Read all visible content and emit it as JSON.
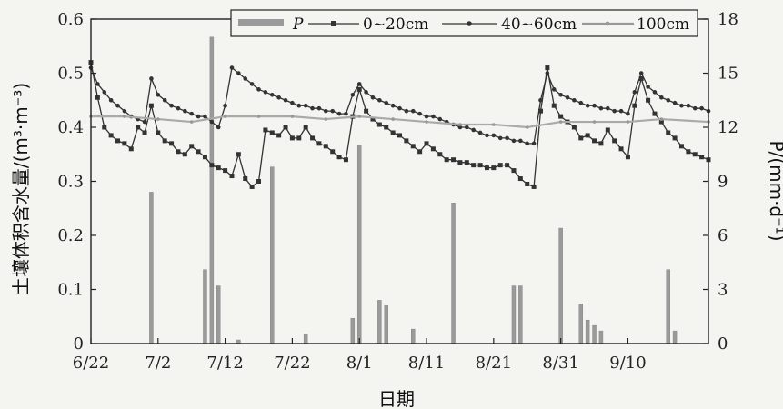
{
  "chart_data": {
    "type": "line",
    "xlabel": "日期",
    "ylabel_left": "土壤体积含水量/(m³·m⁻³)",
    "ylabel_right": "P/(mm·d⁻¹)",
    "x_start": "2019-06-22",
    "x_end": "2019-09-17",
    "xticks": [
      "6/22",
      "7/2",
      "7/12",
      "7/22",
      "8/1",
      "8/11",
      "8/21",
      "8/31",
      "9/10"
    ],
    "ylim_left": [
      0,
      0.6
    ],
    "yticks_left": [
      "0",
      "0.1",
      "0.2",
      "0.3",
      "0.4",
      "0.5",
      "0.6"
    ],
    "ylim_right": [
      0,
      18
    ],
    "yticks_right": [
      "0",
      "3",
      "6",
      "9",
      "12",
      "15",
      "18"
    ],
    "legend": {
      "placement": "top",
      "items": [
        "P",
        "0~20cm",
        "40~60cm",
        "100cm"
      ]
    },
    "colors": {
      "bar": "#9a9a9a",
      "line_0_20": "#333333",
      "line_40_60": "#333333",
      "line_100": "#aaaaaa"
    },
    "precipitation": [
      [
        "7/1",
        8.4
      ],
      [
        "7/9",
        4.1
      ],
      [
        "7/10",
        17.0
      ],
      [
        "7/11",
        3.2
      ],
      [
        "7/14",
        0.2
      ],
      [
        "7/19",
        9.8
      ],
      [
        "7/24",
        0.5
      ],
      [
        "7/31",
        1.4
      ],
      [
        "8/1",
        11.0
      ],
      [
        "8/4",
        2.4
      ],
      [
        "8/5",
        2.1
      ],
      [
        "8/9",
        0.8
      ],
      [
        "8/15",
        7.8
      ],
      [
        "8/24",
        3.2
      ],
      [
        "8/25",
        3.2
      ],
      [
        "8/31",
        6.4
      ],
      [
        "9/3",
        2.2
      ],
      [
        "9/4",
        1.3
      ],
      [
        "9/5",
        1.0
      ],
      [
        "9/6",
        0.7
      ],
      [
        "9/16",
        4.1
      ],
      [
        "9/17",
        0.7
      ]
    ],
    "series": [
      {
        "name": "0~20cm",
        "points": [
          [
            "6/22",
            0.52
          ],
          [
            "6/23",
            0.455
          ],
          [
            "6/24",
            0.4
          ],
          [
            "6/25",
            0.385
          ],
          [
            "6/26",
            0.375
          ],
          [
            "6/27",
            0.37
          ],
          [
            "6/28",
            0.36
          ],
          [
            "6/29",
            0.4
          ],
          [
            "6/30",
            0.39
          ],
          [
            "7/1",
            0.44
          ],
          [
            "7/2",
            0.39
          ],
          [
            "7/3",
            0.375
          ],
          [
            "7/4",
            0.37
          ],
          [
            "7/5",
            0.355
          ],
          [
            "7/6",
            0.35
          ],
          [
            "7/7",
            0.365
          ],
          [
            "7/8",
            0.355
          ],
          [
            "7/9",
            0.345
          ],
          [
            "7/10",
            0.33
          ],
          [
            "7/11",
            0.325
          ],
          [
            "7/12",
            0.32
          ],
          [
            "7/13",
            0.31
          ],
          [
            "7/14",
            0.35
          ],
          [
            "7/15",
            0.305
          ],
          [
            "7/16",
            0.29
          ],
          [
            "7/17",
            0.3
          ],
          [
            "7/18",
            0.395
          ],
          [
            "7/19",
            0.39
          ],
          [
            "7/20",
            0.385
          ],
          [
            "7/21",
            0.4
          ],
          [
            "7/22",
            0.38
          ],
          [
            "7/23",
            0.38
          ],
          [
            "7/24",
            0.4
          ],
          [
            "7/25",
            0.38
          ],
          [
            "7/26",
            0.37
          ],
          [
            "7/27",
            0.365
          ],
          [
            "7/28",
            0.355
          ],
          [
            "7/29",
            0.345
          ],
          [
            "7/30",
            0.34
          ],
          [
            "7/31",
            0.42
          ],
          [
            "8/1",
            0.47
          ],
          [
            "8/2",
            0.43
          ],
          [
            "8/3",
            0.415
          ],
          [
            "8/4",
            0.405
          ],
          [
            "8/5",
            0.4
          ],
          [
            "8/6",
            0.39
          ],
          [
            "8/7",
            0.385
          ],
          [
            "8/8",
            0.375
          ],
          [
            "8/9",
            0.365
          ],
          [
            "8/10",
            0.355
          ],
          [
            "8/11",
            0.37
          ],
          [
            "8/12",
            0.36
          ],
          [
            "8/13",
            0.35
          ],
          [
            "8/14",
            0.34
          ],
          [
            "8/15",
            0.34
          ],
          [
            "8/16",
            0.335
          ],
          [
            "8/17",
            0.335
          ],
          [
            "8/18",
            0.33
          ],
          [
            "8/19",
            0.33
          ],
          [
            "8/20",
            0.325
          ],
          [
            "8/21",
            0.325
          ],
          [
            "8/22",
            0.33
          ],
          [
            "8/23",
            0.33
          ],
          [
            "8/24",
            0.32
          ],
          [
            "8/25",
            0.305
          ],
          [
            "8/26",
            0.295
          ],
          [
            "8/27",
            0.29
          ],
          [
            "8/28",
            0.43
          ],
          [
            "8/29",
            0.51
          ],
          [
            "8/30",
            0.44
          ],
          [
            "8/31",
            0.42
          ],
          [
            "9/1",
            0.41
          ],
          [
            "9/2",
            0.4
          ],
          [
            "9/3",
            0.38
          ],
          [
            "9/4",
            0.385
          ],
          [
            "9/5",
            0.375
          ],
          [
            "9/6",
            0.37
          ],
          [
            "9/7",
            0.395
          ],
          [
            "9/8",
            0.375
          ],
          [
            "9/9",
            0.36
          ],
          [
            "9/10",
            0.345
          ],
          [
            "9/11",
            0.44
          ],
          [
            "9/12",
            0.49
          ],
          [
            "9/13",
            0.45
          ],
          [
            "9/14",
            0.425
          ],
          [
            "9/15",
            0.41
          ],
          [
            "9/16",
            0.39
          ],
          [
            "9/17",
            0.38
          ],
          [
            "9/18",
            0.365
          ],
          [
            "9/19",
            0.355
          ],
          [
            "9/20",
            0.35
          ],
          [
            "9/21",
            0.345
          ],
          [
            "9/22",
            0.34
          ]
        ]
      },
      {
        "name": "40~60cm",
        "points": [
          [
            "6/22",
            0.51
          ],
          [
            "6/23",
            0.48
          ],
          [
            "6/24",
            0.465
          ],
          [
            "6/25",
            0.45
          ],
          [
            "6/26",
            0.44
          ],
          [
            "6/27",
            0.43
          ],
          [
            "6/28",
            0.42
          ],
          [
            "6/29",
            0.415
          ],
          [
            "6/30",
            0.41
          ],
          [
            "7/1",
            0.49
          ],
          [
            "7/2",
            0.46
          ],
          [
            "7/3",
            0.45
          ],
          [
            "7/4",
            0.44
          ],
          [
            "7/5",
            0.435
          ],
          [
            "7/6",
            0.43
          ],
          [
            "7/7",
            0.425
          ],
          [
            "7/8",
            0.42
          ],
          [
            "7/9",
            0.42
          ],
          [
            "7/10",
            0.41
          ],
          [
            "7/11",
            0.4
          ],
          [
            "7/12",
            0.44
          ],
          [
            "7/13",
            0.51
          ],
          [
            "7/14",
            0.5
          ],
          [
            "7/15",
            0.49
          ],
          [
            "7/16",
            0.48
          ],
          [
            "7/17",
            0.47
          ],
          [
            "7/18",
            0.465
          ],
          [
            "7/19",
            0.46
          ],
          [
            "7/20",
            0.455
          ],
          [
            "7/21",
            0.45
          ],
          [
            "7/22",
            0.445
          ],
          [
            "7/23",
            0.44
          ],
          [
            "7/24",
            0.44
          ],
          [
            "7/25",
            0.435
          ],
          [
            "7/26",
            0.435
          ],
          [
            "7/27",
            0.43
          ],
          [
            "7/28",
            0.43
          ],
          [
            "7/29",
            0.425
          ],
          [
            "7/30",
            0.425
          ],
          [
            "7/31",
            0.46
          ],
          [
            "8/1",
            0.48
          ],
          [
            "8/2",
            0.465
          ],
          [
            "8/3",
            0.455
          ],
          [
            "8/4",
            0.45
          ],
          [
            "8/5",
            0.445
          ],
          [
            "8/6",
            0.44
          ],
          [
            "8/7",
            0.435
          ],
          [
            "8/8",
            0.43
          ],
          [
            "8/9",
            0.43
          ],
          [
            "8/10",
            0.425
          ],
          [
            "8/11",
            0.42
          ],
          [
            "8/12",
            0.42
          ],
          [
            "8/13",
            0.415
          ],
          [
            "8/14",
            0.41
          ],
          [
            "8/15",
            0.405
          ],
          [
            "8/16",
            0.4
          ],
          [
            "8/17",
            0.4
          ],
          [
            "8/18",
            0.395
          ],
          [
            "8/19",
            0.39
          ],
          [
            "8/20",
            0.385
          ],
          [
            "8/21",
            0.385
          ],
          [
            "8/22",
            0.38
          ],
          [
            "8/23",
            0.38
          ],
          [
            "8/24",
            0.375
          ],
          [
            "8/25",
            0.375
          ],
          [
            "8/26",
            0.37
          ],
          [
            "8/27",
            0.37
          ],
          [
            "8/28",
            0.45
          ],
          [
            "8/29",
            0.5
          ],
          [
            "8/30",
            0.47
          ],
          [
            "8/31",
            0.46
          ],
          [
            "9/1",
            0.455
          ],
          [
            "9/2",
            0.45
          ],
          [
            "9/3",
            0.445
          ],
          [
            "9/4",
            0.44
          ],
          [
            "9/5",
            0.44
          ],
          [
            "9/6",
            0.435
          ],
          [
            "9/7",
            0.435
          ],
          [
            "9/8",
            0.43
          ],
          [
            "9/9",
            0.43
          ],
          [
            "9/10",
            0.425
          ],
          [
            "9/11",
            0.465
          ],
          [
            "9/12",
            0.5
          ],
          [
            "9/13",
            0.475
          ],
          [
            "9/14",
            0.465
          ],
          [
            "9/15",
            0.455
          ],
          [
            "9/16",
            0.45
          ],
          [
            "9/17",
            0.445
          ],
          [
            "9/18",
            0.44
          ],
          [
            "9/19",
            0.44
          ],
          [
            "9/20",
            0.435
          ],
          [
            "9/21",
            0.435
          ],
          [
            "9/22",
            0.43
          ]
        ]
      },
      {
        "name": "100cm",
        "points": [
          [
            "6/22",
            0.42
          ],
          [
            "6/27",
            0.42
          ],
          [
            "7/2",
            0.415
          ],
          [
            "7/7",
            0.41
          ],
          [
            "7/12",
            0.42
          ],
          [
            "7/17",
            0.42
          ],
          [
            "7/22",
            0.42
          ],
          [
            "7/27",
            0.415
          ],
          [
            "8/1",
            0.42
          ],
          [
            "8/6",
            0.415
          ],
          [
            "8/11",
            0.41
          ],
          [
            "8/16",
            0.405
          ],
          [
            "8/21",
            0.405
          ],
          [
            "8/26",
            0.4
          ],
          [
            "8/31",
            0.41
          ],
          [
            "9/5",
            0.41
          ],
          [
            "9/10",
            0.41
          ],
          [
            "9/15",
            0.415
          ],
          [
            "9/22",
            0.41
          ]
        ]
      }
    ]
  }
}
